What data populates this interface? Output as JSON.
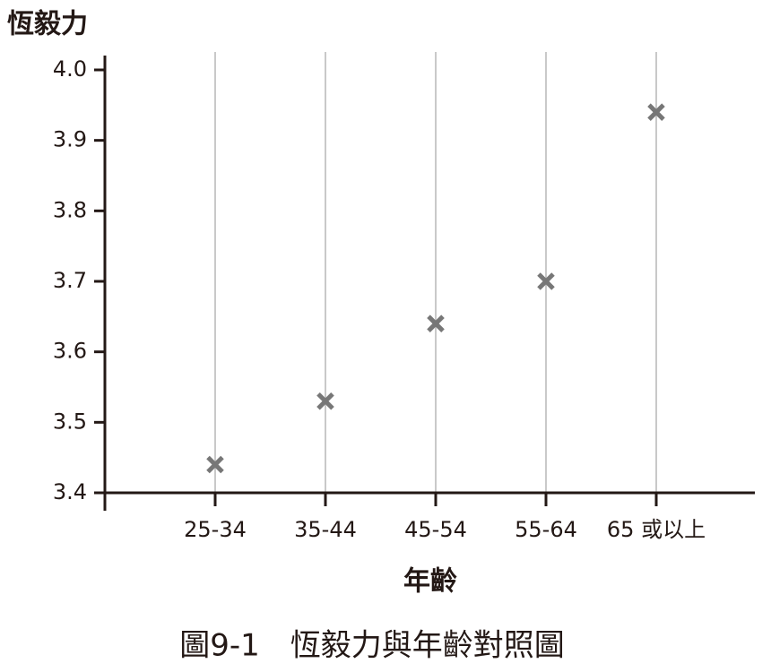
{
  "chart_data": {
    "type": "scatter",
    "ylabel": "恆毅力",
    "xlabel": "年齡",
    "caption": "圖9-1　恆毅力與年齡對照圖",
    "categories": [
      "25-34",
      "35-44",
      "45-54",
      "55-64",
      "65 或以上"
    ],
    "values": [
      3.44,
      3.53,
      3.64,
      3.7,
      3.94
    ],
    "color": "#777777",
    "marker": "x",
    "ylim": [
      3.4,
      4.0
    ],
    "yticks": [
      {
        "value": 3.4,
        "label": "3.4"
      },
      3.5,
      3.6,
      3.7,
      3.8,
      3.9,
      {
        "value": 4,
        "label": "4.0"
      }
    ],
    "grid": "x"
  }
}
